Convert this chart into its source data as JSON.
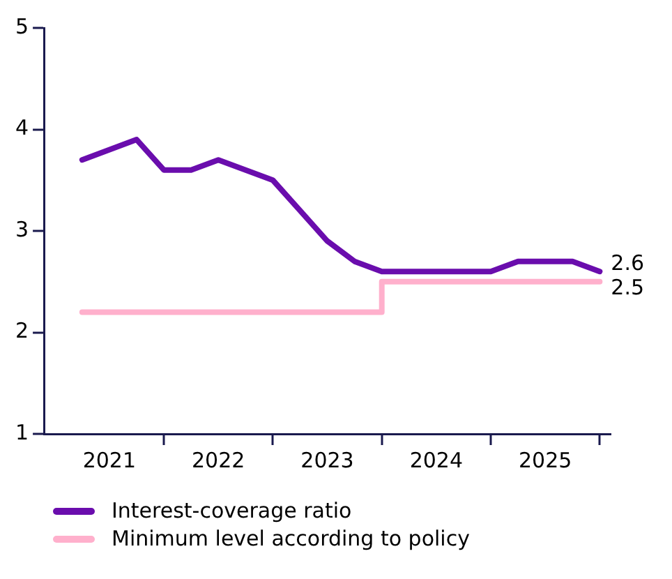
{
  "chart_data": {
    "type": "line",
    "legend": "bottom",
    "marker": "none",
    "line_style": "solid",
    "grid": false,
    "xlim": [
      2020.9,
      2026.1
    ],
    "xticks": [
      {
        "value": 2021.5,
        "label": "2021"
      },
      {
        "value": 2022,
        "label": null
      },
      {
        "value": 2022.5,
        "label": "2022"
      },
      {
        "value": 2023,
        "label": null
      },
      {
        "value": 2023.5,
        "label": "2023"
      },
      {
        "value": 2024,
        "label": null
      },
      {
        "value": 2024.5,
        "label": "2024"
      },
      {
        "value": 2025,
        "label": null
      },
      {
        "value": 2025.5,
        "label": "2025"
      },
      {
        "value": 2026,
        "label": null
      }
    ],
    "ylim": [
      1,
      5
    ],
    "yticks": [
      1,
      2,
      3,
      4,
      5
    ],
    "series": [
      {
        "name": "Interest-coverage ratio",
        "color": "#6a0dad",
        "x": [
          2021.25,
          2021.75,
          2022,
          2022.25,
          2022.5,
          2023,
          2023.25,
          2023.5,
          2023.75,
          2024,
          2025,
          2025.25,
          2025.75,
          2026
        ],
        "values": [
          3.7,
          3.9,
          3.6,
          3.6,
          3.7,
          3.5,
          3.2,
          2.9,
          2.7,
          2.6,
          2.6,
          2.7,
          2.7,
          2.6
        ]
      },
      {
        "name": "Minimum level according to policy",
        "type": "step",
        "color": "#ffb0cc",
        "x": [
          2021.25,
          2024,
          2026
        ],
        "values": [
          2.2,
          2.5,
          2.5
        ]
      }
    ],
    "annotations": [
      {
        "text": "2.6",
        "x": 2026,
        "y": 2.6
      },
      {
        "text": "2.5",
        "x": 2026,
        "y": 2.5
      }
    ]
  }
}
